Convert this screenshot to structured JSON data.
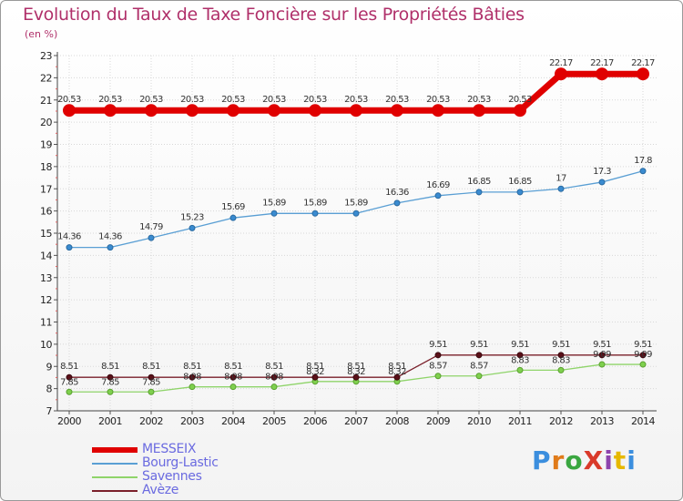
{
  "title": "Evolution du Taux de Taxe Foncière sur les Propriétés Bâties",
  "unit_label": "(en %)",
  "logo": {
    "text": "ProXiti",
    "colors": [
      "#3b8ede",
      "#e07b1a",
      "#3aa640",
      "#d93a2a",
      "#8e44ad",
      "#e6b800",
      "#3b8ede"
    ]
  },
  "chart_data": {
    "type": "line",
    "title": "Evolution du Taux de Taxe Foncière sur les Propriétés Bâties",
    "ylabel": "(en %)",
    "xlabel": "",
    "ylim": [
      7,
      23
    ],
    "yticks": [
      "7",
      "8",
      "9",
      "10",
      "11",
      "12",
      "13",
      "14",
      "15",
      "16",
      "17",
      "18",
      "19",
      "20",
      "21",
      "22",
      "23"
    ],
    "categories": [
      "2000",
      "2001",
      "2002",
      "2003",
      "2004",
      "2005",
      "2006",
      "2007",
      "2008",
      "2009",
      "2010",
      "2011",
      "2012",
      "2013",
      "2014"
    ],
    "series": [
      {
        "name": "MESSEIX",
        "color": "#e00000",
        "values": [
          20.53,
          20.53,
          20.53,
          20.53,
          20.53,
          20.53,
          20.53,
          20.53,
          20.53,
          20.53,
          20.53,
          20.53,
          22.17,
          22.17,
          22.17
        ],
        "labels": [
          "20.53",
          "20.53",
          "20.53",
          "20.53",
          "20.53",
          "20.53",
          "20.53",
          "20.53",
          "20.53",
          "20.53",
          "20.53",
          "20.53",
          "22.17",
          "22.17",
          "22.17"
        ]
      },
      {
        "name": "Bourg-Lastic",
        "color": "#5a9fd4",
        "values": [
          14.36,
          14.36,
          14.79,
          15.23,
          15.69,
          15.89,
          15.89,
          15.89,
          16.36,
          16.69,
          16.85,
          16.85,
          17,
          17.3,
          17.8
        ],
        "labels": [
          "14.36",
          "14.36",
          "14.79",
          "15.23",
          "15.69",
          "15.89",
          "15.89",
          "15.89",
          "16.36",
          "16.69",
          "16.85",
          "16.85",
          "17",
          "17.3",
          "17.8"
        ]
      },
      {
        "name": "Savennes",
        "color": "#8fd46a",
        "values": [
          7.85,
          7.85,
          7.85,
          8.08,
          8.08,
          8.08,
          8.32,
          8.32,
          8.32,
          8.57,
          8.57,
          8.83,
          8.83,
          9.09,
          9.09
        ],
        "labels": [
          "7.85",
          "7.85",
          "7.85",
          "8.08",
          "8.08",
          "8.08",
          "8.32",
          "8.32",
          "8.32",
          "8.57",
          "8.57",
          "8.83",
          "8.83",
          "9.09",
          "9.09"
        ]
      },
      {
        "name": "Avèze",
        "color": "#7a1f2a",
        "values": [
          8.51,
          8.51,
          8.51,
          8.51,
          8.51,
          8.51,
          8.51,
          8.51,
          8.51,
          9.51,
          9.51,
          9.51,
          9.51,
          9.51,
          9.51
        ],
        "labels": [
          "8.51",
          "8.51",
          "8.51",
          "8.51",
          "8.51",
          "8.51",
          "8.51",
          "8.51",
          "8.51",
          "9.51",
          "9.51",
          "9.51",
          "9.51",
          "9.51",
          "9.51"
        ]
      }
    ]
  }
}
